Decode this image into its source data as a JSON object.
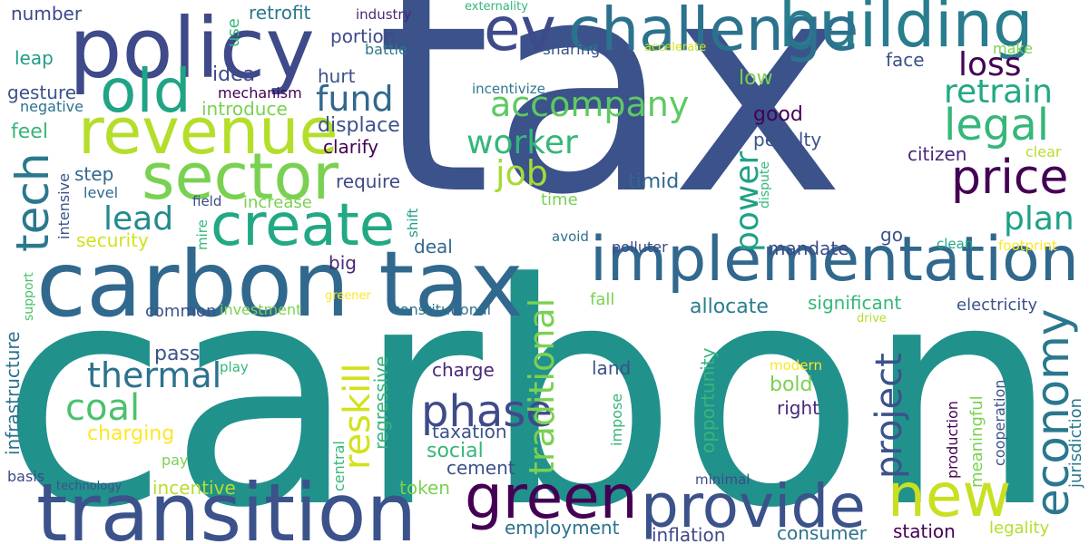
{
  "words": [
    {
      "text": "carbon",
      "color": "#21918c"
    },
    {
      "text": "tax",
      "color": "#3b528b"
    },
    {
      "text": "carbon tax",
      "color": "#31688e"
    },
    {
      "text": "transition",
      "color": "#3b528b"
    },
    {
      "text": "implementation",
      "color": "#31688e"
    },
    {
      "text": "policy",
      "color": "#3e4a89"
    },
    {
      "text": "building",
      "color": "#287d8e"
    },
    {
      "text": "challenge",
      "color": "#2c728e"
    },
    {
      "text": "ev",
      "color": "#3e4a89"
    },
    {
      "text": "revenue",
      "color": "#b5de2b"
    },
    {
      "text": "sector",
      "color": "#7ad151"
    },
    {
      "text": "create",
      "color": "#22a884"
    },
    {
      "text": "old",
      "color": "#20a486"
    },
    {
      "text": "provide",
      "color": "#3b528b"
    },
    {
      "text": "green",
      "color": "#440154"
    },
    {
      "text": "new",
      "color": "#c8e020"
    },
    {
      "text": "economy",
      "color": "#2a788e"
    },
    {
      "text": "price",
      "color": "#440154"
    },
    {
      "text": "legal",
      "color": "#35b779"
    },
    {
      "text": "tech",
      "color": "#2a788e"
    },
    {
      "text": "accompany",
      "color": "#5ec962"
    },
    {
      "text": "retrain",
      "color": "#22a884"
    },
    {
      "text": "loss",
      "color": "#440154"
    },
    {
      "text": "fund",
      "color": "#31688e"
    },
    {
      "text": "worker",
      "color": "#35b779"
    },
    {
      "text": "job",
      "color": "#a5db36"
    },
    {
      "text": "plan",
      "color": "#1fa187"
    },
    {
      "text": "lead",
      "color": "#238a8d"
    },
    {
      "text": "coal",
      "color": "#4ac16d"
    },
    {
      "text": "thermal",
      "color": "#2c728e"
    },
    {
      "text": "phase",
      "color": "#3e4a89"
    },
    {
      "text": "traditional",
      "color": "#7ad151"
    },
    {
      "text": "reskill",
      "color": "#d2e21b"
    },
    {
      "text": "project",
      "color": "#3b528b"
    },
    {
      "text": "power",
      "color": "#1fa187"
    },
    {
      "text": "charging",
      "color": "#fde725"
    },
    {
      "text": "number",
      "color": "#3e4a89"
    },
    {
      "text": "retrofit",
      "color": "#2a788e"
    },
    {
      "text": "industry",
      "color": "#482878"
    },
    {
      "text": "externality",
      "color": "#35b779"
    },
    {
      "text": "use",
      "color": "#35b779"
    },
    {
      "text": "leap",
      "color": "#1f9e89"
    },
    {
      "text": "portion",
      "color": "#3e4a89"
    },
    {
      "text": "battle",
      "color": "#2a788e"
    },
    {
      "text": "sharing",
      "color": "#3b528b"
    },
    {
      "text": "accelerate",
      "color": "#d2e21b"
    },
    {
      "text": "make",
      "color": "#7ad151"
    },
    {
      "text": "face",
      "color": "#3b528b"
    },
    {
      "text": "idea",
      "color": "#3e4a89"
    },
    {
      "text": "hurt",
      "color": "#3b528b"
    },
    {
      "text": "gesture",
      "color": "#3b528b"
    },
    {
      "text": "negative",
      "color": "#2c728e"
    },
    {
      "text": "mechanism",
      "color": "#440154"
    },
    {
      "text": "introduce",
      "color": "#7ad151"
    },
    {
      "text": "incentivize",
      "color": "#2a788e"
    },
    {
      "text": "low",
      "color": "#7ad151"
    },
    {
      "text": "feel",
      "color": "#35b779"
    },
    {
      "text": "displace",
      "color": "#3b528b"
    },
    {
      "text": "clarify",
      "color": "#440154"
    },
    {
      "text": "good",
      "color": "#440154"
    },
    {
      "text": "penalty",
      "color": "#3b528b"
    },
    {
      "text": "citizen",
      "color": "#482878"
    },
    {
      "text": "clear",
      "color": "#b5de2b"
    },
    {
      "text": "step",
      "color": "#31688e"
    },
    {
      "text": "level",
      "color": "#31688e"
    },
    {
      "text": "intensive",
      "color": "#3b528b"
    },
    {
      "text": "require",
      "color": "#3e4a89"
    },
    {
      "text": "time",
      "color": "#7ad151"
    },
    {
      "text": "timid",
      "color": "#31688e"
    },
    {
      "text": "dispute",
      "color": "#35b779"
    },
    {
      "text": "field",
      "color": "#3e4a89"
    },
    {
      "text": "mire",
      "color": "#35b779"
    },
    {
      "text": "shift",
      "color": "#1f9e89"
    },
    {
      "text": "increase",
      "color": "#7ad151"
    },
    {
      "text": "go",
      "color": "#3b528b"
    },
    {
      "text": "security",
      "color": "#d2e21b"
    },
    {
      "text": "deal",
      "color": "#31688e"
    },
    {
      "text": "avoid",
      "color": "#2c728e"
    },
    {
      "text": "polluter",
      "color": "#3e4a89"
    },
    {
      "text": "mandate",
      "color": "#3e4a89"
    },
    {
      "text": "clean",
      "color": "#22a884"
    },
    {
      "text": "footprint",
      "color": "#fde725"
    },
    {
      "text": "big",
      "color": "#482878"
    },
    {
      "text": "support",
      "color": "#4ac16d"
    },
    {
      "text": "greener",
      "color": "#fde725"
    },
    {
      "text": "significant",
      "color": "#35b779"
    },
    {
      "text": "electricity",
      "color": "#3b528b"
    },
    {
      "text": "infrastructure",
      "color": "#2c728e"
    },
    {
      "text": "common",
      "color": "#3b528b"
    },
    {
      "text": "investment",
      "color": "#7ad151"
    },
    {
      "text": "constitutional",
      "color": "#2c728e"
    },
    {
      "text": "fall",
      "color": "#7ad151"
    },
    {
      "text": "allocate",
      "color": "#287d8e"
    },
    {
      "text": "drive",
      "color": "#b5de2b"
    },
    {
      "text": "pass",
      "color": "#3b528b"
    },
    {
      "text": "regressive",
      "color": "#35b779"
    },
    {
      "text": "opportunity",
      "color": "#35b779"
    },
    {
      "text": "play",
      "color": "#35b779"
    },
    {
      "text": "land",
      "color": "#3b528b"
    },
    {
      "text": "modern",
      "color": "#fde725"
    },
    {
      "text": "production",
      "color": "#440154"
    },
    {
      "text": "meaningful",
      "color": "#7ad151"
    },
    {
      "text": "cooperation",
      "color": "#3b528b"
    },
    {
      "text": "jurisdiction",
      "color": "#2a788e"
    },
    {
      "text": "charge",
      "color": "#482878"
    },
    {
      "text": "bold",
      "color": "#7ad151"
    },
    {
      "text": "right",
      "color": "#482878"
    },
    {
      "text": "central",
      "color": "#35b779"
    },
    {
      "text": "impose",
      "color": "#35b779"
    },
    {
      "text": "taxation",
      "color": "#3b528b"
    },
    {
      "text": "social",
      "color": "#35b779"
    },
    {
      "text": "cement",
      "color": "#3b528b"
    },
    {
      "text": "basis",
      "color": "#3e4a89"
    },
    {
      "text": "pay",
      "color": "#7ad151"
    },
    {
      "text": "token",
      "color": "#7ad151"
    },
    {
      "text": "minimal",
      "color": "#3e4a89"
    },
    {
      "text": "technology",
      "color": "#3b528b"
    },
    {
      "text": "incentive",
      "color": "#b5de2b"
    },
    {
      "text": "employment",
      "color": "#2c728e"
    },
    {
      "text": "inflation",
      "color": "#3e4a89"
    },
    {
      "text": "consumer",
      "color": "#2c728e"
    },
    {
      "text": "station",
      "color": "#440154"
    },
    {
      "text": "legality",
      "color": "#b5de2b"
    }
  ]
}
